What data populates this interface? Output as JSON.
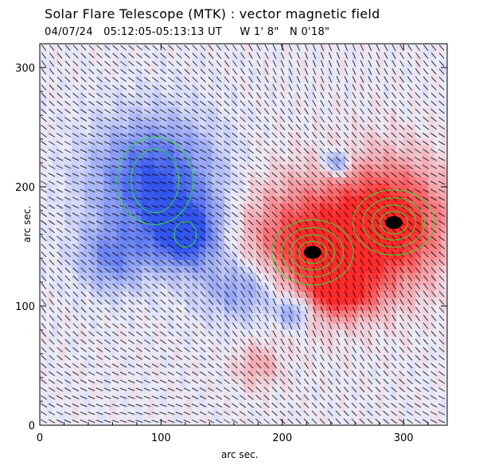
{
  "header": {
    "title": "Solar Flare Telescope (MTK) : vector magnetic field",
    "date": "04/07/24",
    "time_range": "05:12:05-05:13:13 UT",
    "position_w": "W 1' 8\"",
    "position_n": "N 0'18\""
  },
  "chart_data": {
    "type": "heatmap",
    "title": "Solar Flare Telescope (MTK) : vector magnetic field",
    "xlabel": "arc sec.",
    "ylabel": "arc sec.",
    "xlim": [
      0,
      336
    ],
    "ylim": [
      0,
      320
    ],
    "xticks": [
      0,
      100,
      200,
      300
    ],
    "yticks": [
      0,
      100,
      200,
      300
    ],
    "colors": {
      "positive_polarity": "#ff2a2a",
      "negative_polarity": "#3355ee",
      "contour": "#33dd33",
      "vectors": "#000000"
    },
    "regions": [
      {
        "polarity": "negative",
        "x": 95,
        "y": 205,
        "rx": 55,
        "ry": 55,
        "strength": 0.85
      },
      {
        "polarity": "negative",
        "x": 120,
        "y": 160,
        "rx": 30,
        "ry": 30,
        "strength": 0.9
      },
      {
        "polarity": "negative",
        "x": 170,
        "y": 115,
        "rx": 40,
        "ry": 30,
        "strength": 0.55
      },
      {
        "polarity": "negative",
        "x": 60,
        "y": 140,
        "rx": 30,
        "ry": 30,
        "strength": 0.5
      },
      {
        "polarity": "negative",
        "x": 245,
        "y": 220,
        "rx": 12,
        "ry": 12,
        "strength": 0.6
      },
      {
        "polarity": "negative",
        "x": 210,
        "y": 95,
        "rx": 15,
        "ry": 15,
        "strength": 0.55
      },
      {
        "polarity": "positive",
        "x": 225,
        "y": 150,
        "rx": 60,
        "ry": 55,
        "strength": 0.9
      },
      {
        "polarity": "positive",
        "x": 290,
        "y": 170,
        "rx": 50,
        "ry": 55,
        "strength": 0.9
      },
      {
        "polarity": "positive",
        "x": 250,
        "y": 110,
        "rx": 30,
        "ry": 20,
        "strength": 0.6
      },
      {
        "polarity": "positive",
        "x": 180,
        "y": 50,
        "rx": 20,
        "ry": 20,
        "strength": 0.3
      }
    ],
    "umbrae": [
      {
        "x": 225,
        "y": 145
      },
      {
        "x": 292,
        "y": 170
      }
    ]
  }
}
